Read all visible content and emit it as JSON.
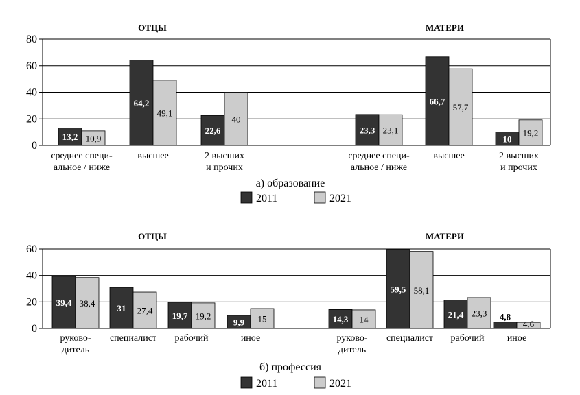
{
  "colors": {
    "s2011": "#333333",
    "s2021": "#cccccc",
    "axis": "#000000"
  },
  "chart_data": [
    {
      "type": "bar",
      "caption": "а) образование",
      "ylim": [
        0,
        80
      ],
      "yticks": [
        0,
        20,
        40,
        60,
        80
      ],
      "groups": [
        {
          "name": "ОТЦЫ",
          "categories": [
            [
              "среднее специ-",
              "альное / ниже"
            ],
            [
              "высшее"
            ],
            [
              "2 высших",
              "и прочих"
            ]
          ],
          "series": [
            {
              "name": "2011",
              "values": [
                13.2,
                64.2,
                22.6
              ],
              "labels": [
                "13,2",
                "64,2",
                "22,6"
              ]
            },
            {
              "name": "2021",
              "values": [
                10.9,
                49.1,
                40
              ],
              "labels": [
                "10,9",
                "49,1",
                "40"
              ]
            }
          ]
        },
        {
          "name": "МАТЕРИ",
          "categories": [
            [
              "среднее специ-",
              "альное / ниже"
            ],
            [
              "высшее"
            ],
            [
              "2 высших",
              "и прочих"
            ]
          ],
          "series": [
            {
              "name": "2011",
              "values": [
                23.3,
                66.7,
                10
              ],
              "labels": [
                "23,3",
                "66,7",
                "10"
              ]
            },
            {
              "name": "2021",
              "values": [
                23.1,
                57.7,
                19.2
              ],
              "labels": [
                "23,1",
                "57,7",
                "19,2"
              ]
            }
          ]
        }
      ],
      "legend": [
        "2011",
        "2021"
      ]
    },
    {
      "type": "bar",
      "caption": "б) профессия",
      "ylim": [
        0,
        60
      ],
      "yticks": [
        0,
        20,
        40,
        60
      ],
      "groups": [
        {
          "name": "ОТЦЫ",
          "categories": [
            [
              "руково-",
              "дитель"
            ],
            [
              "специалист"
            ],
            [
              "рабочий"
            ],
            [
              "иное"
            ]
          ],
          "series": [
            {
              "name": "2011",
              "values": [
                39.4,
                31,
                19.7,
                9.9
              ],
              "labels": [
                "39,4",
                "31",
                "19,7",
                "9,9"
              ]
            },
            {
              "name": "2021",
              "values": [
                38.4,
                27.4,
                19.2,
                15
              ],
              "labels": [
                "38,4",
                "27,4",
                "19,2",
                "15"
              ]
            }
          ]
        },
        {
          "name": "МАТЕРИ",
          "categories": [
            [
              "руково-",
              "дитель"
            ],
            [
              "специалист"
            ],
            [
              "рабочий"
            ],
            [
              "иное"
            ]
          ],
          "series": [
            {
              "name": "2011",
              "values": [
                14.3,
                59.5,
                21.4,
                4.8
              ],
              "labels": [
                "14,3",
                "59,5",
                "21,4",
                "4,8"
              ]
            },
            {
              "name": "2021",
              "values": [
                14,
                58.1,
                23.3,
                4.6
              ],
              "labels": [
                "14",
                "58,1",
                "23,3",
                "4,6"
              ]
            }
          ]
        }
      ],
      "legend": [
        "2011",
        "2021"
      ]
    }
  ]
}
